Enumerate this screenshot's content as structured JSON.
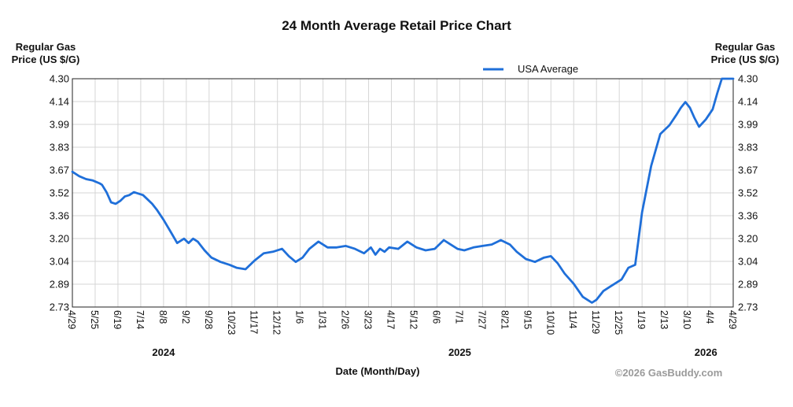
{
  "chart_data": {
    "type": "line",
    "title": "24 Month Average Retail Price Chart",
    "ylabel_left": [
      "Regular Gas",
      "Price (US $/G)"
    ],
    "ylabel_right": [
      "Regular Gas",
      "Price (US $/G)"
    ],
    "xlabel": "Date (Month/Day)",
    "copyright": "©2026 GasBuddy.com",
    "ylim": [
      2.73,
      4.3
    ],
    "yticks": [
      "4.30",
      "4.14",
      "3.99",
      "3.83",
      "3.67",
      "3.52",
      "3.36",
      "3.20",
      "3.04",
      "2.89",
      "2.73"
    ],
    "xticks": [
      "4/29",
      "5/25",
      "6/19",
      "7/14",
      "8/8",
      "9/2",
      "9/28",
      "10/23",
      "11/17",
      "12/12",
      "1/6",
      "1/31",
      "2/26",
      "3/23",
      "4/17",
      "5/12",
      "6/6",
      "7/1",
      "7/27",
      "8/21",
      "9/15",
      "10/10",
      "11/4",
      "11/29",
      "12/25",
      "1/19",
      "2/13",
      "3/10",
      "4/4",
      "4/29"
    ],
    "years": [
      {
        "label": "2024",
        "tick_index": 4
      },
      {
        "label": "2025",
        "tick_index": 17
      },
      {
        "label": "2026",
        "tick_index": 27.8
      }
    ],
    "legend": {
      "label": "USA Average",
      "position": "top-right"
    },
    "line_color": "#1f6fd9",
    "series": [
      {
        "name": "USA Average",
        "x": [
          0,
          0.3,
          0.6,
          0.9,
          1.2,
          1.3,
          1.5,
          1.7,
          1.9,
          2.1,
          2.3,
          2.5,
          2.7,
          2.9,
          3.1,
          3.3,
          3.5,
          3.7,
          4.0,
          4.3,
          4.6,
          4.9,
          5.1,
          5.3,
          5.5,
          5.8,
          6.1,
          6.5,
          6.9,
          7.2,
          7.6,
          8.0,
          8.4,
          8.8,
          9.2,
          9.5,
          9.8,
          10.1,
          10.4,
          10.8,
          11.2,
          11.6,
          12.0,
          12.4,
          12.8,
          13.1,
          13.3,
          13.5,
          13.7,
          13.9,
          14.3,
          14.7,
          15.1,
          15.5,
          15.9,
          16.3,
          16.6,
          16.9,
          17.2,
          17.6,
          18.0,
          18.4,
          18.8,
          19.2,
          19.5,
          19.9,
          20.3,
          20.7,
          21.0,
          21.3,
          21.6,
          22.0,
          22.4,
          22.8,
          23.0,
          23.3,
          23.6,
          23.9,
          24.1,
          24.4,
          24.7,
          25.0,
          25.4,
          25.8,
          26.2,
          26.5,
          26.7,
          26.9,
          27.1,
          27.3,
          27.5,
          27.8,
          28.1,
          28.3,
          28.5,
          28.7,
          28.9,
          29.0
        ],
        "values": [
          3.66,
          3.63,
          3.61,
          3.6,
          3.58,
          3.57,
          3.52,
          3.45,
          3.44,
          3.46,
          3.49,
          3.5,
          3.52,
          3.51,
          3.5,
          3.47,
          3.44,
          3.4,
          3.33,
          3.25,
          3.17,
          3.2,
          3.17,
          3.2,
          3.18,
          3.12,
          3.07,
          3.04,
          3.02,
          3.0,
          2.99,
          3.05,
          3.1,
          3.11,
          3.13,
          3.08,
          3.04,
          3.07,
          3.13,
          3.18,
          3.14,
          3.14,
          3.15,
          3.13,
          3.1,
          3.14,
          3.09,
          3.13,
          3.11,
          3.14,
          3.13,
          3.18,
          3.14,
          3.12,
          3.13,
          3.19,
          3.16,
          3.13,
          3.12,
          3.14,
          3.15,
          3.16,
          3.19,
          3.16,
          3.11,
          3.06,
          3.04,
          3.07,
          3.08,
          3.03,
          2.96,
          2.89,
          2.8,
          2.76,
          2.78,
          2.84,
          2.87,
          2.9,
          2.92,
          3.0,
          3.02,
          3.38,
          3.7,
          3.92,
          3.98,
          4.05,
          4.1,
          4.14,
          4.1,
          4.03,
          3.97,
          4.02,
          4.09,
          4.2,
          4.3,
          4.3,
          4.3,
          4.3
        ]
      }
    ]
  }
}
